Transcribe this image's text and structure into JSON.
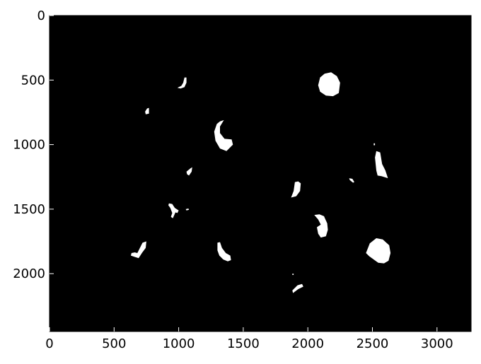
{
  "chart_data": {
    "type": "image",
    "title": "",
    "xlabel": "",
    "ylabel": "",
    "xlim": [
      0,
      3264
    ],
    "ylim": [
      2448,
      0
    ],
    "xticks": [
      0,
      500,
      1000,
      1500,
      2000,
      2500,
      3000
    ],
    "yticks": [
      0,
      500,
      1000,
      1500,
      2000
    ],
    "xtick_labels": [
      "0",
      "500",
      "1000",
      "1500",
      "2000",
      "2500",
      "3000"
    ],
    "ytick_labels": [
      "0",
      "500",
      "1000",
      "1500",
      "2000"
    ],
    "background_color": "#000000",
    "foreground_color": "#ffffff",
    "grid": false,
    "blobs": [
      {
        "name": "blob-1",
        "points": [
          [
            1000,
            555
          ],
          [
            1020,
            545
          ],
          [
            1035,
            520
          ],
          [
            1045,
            480
          ],
          [
            1060,
            480
          ],
          [
            1060,
            520
          ],
          [
            1045,
            555
          ],
          [
            1015,
            565
          ],
          [
            990,
            560
          ]
        ]
      },
      {
        "name": "blob-2",
        "points": [
          [
            740,
            745
          ],
          [
            755,
            720
          ],
          [
            770,
            715
          ],
          [
            770,
            760
          ],
          [
            745,
            765
          ]
        ]
      },
      {
        "name": "blob-3",
        "points": [
          [
            2080,
            540
          ],
          [
            2095,
            480
          ],
          [
            2130,
            450
          ],
          [
            2180,
            440
          ],
          [
            2225,
            470
          ],
          [
            2250,
            520
          ],
          [
            2240,
            600
          ],
          [
            2195,
            625
          ],
          [
            2140,
            620
          ],
          [
            2095,
            590
          ]
        ]
      },
      {
        "name": "blob-4",
        "points": [
          [
            1320,
            820
          ],
          [
            1350,
            810
          ],
          [
            1320,
            860
          ],
          [
            1320,
            910
          ],
          [
            1355,
            955
          ],
          [
            1410,
            960
          ],
          [
            1420,
            1000
          ],
          [
            1370,
            1050
          ],
          [
            1320,
            1030
          ],
          [
            1285,
            970
          ],
          [
            1275,
            900
          ],
          [
            1295,
            840
          ]
        ]
      },
      {
        "name": "blob-5",
        "points": [
          [
            2530,
            1050
          ],
          [
            2560,
            1060
          ],
          [
            2575,
            1150
          ],
          [
            2600,
            1200
          ],
          [
            2620,
            1260
          ],
          [
            2570,
            1245
          ],
          [
            2540,
            1240
          ],
          [
            2530,
            1200
          ],
          [
            2520,
            1100
          ]
        ]
      },
      {
        "name": "blob-6",
        "points": [
          [
            2510,
            990
          ],
          [
            2520,
            990
          ],
          [
            2520,
            1005
          ],
          [
            2510,
            1005
          ]
        ]
      },
      {
        "name": "blob-7",
        "points": [
          [
            1060,
            1210
          ],
          [
            1090,
            1185
          ],
          [
            1105,
            1175
          ],
          [
            1100,
            1210
          ],
          [
            1080,
            1240
          ],
          [
            1065,
            1230
          ]
        ]
      },
      {
        "name": "blob-8",
        "points": [
          [
            2320,
            1260
          ],
          [
            2345,
            1265
          ],
          [
            2360,
            1290
          ],
          [
            2350,
            1295
          ],
          [
            2325,
            1275
          ]
        ]
      },
      {
        "name": "blob-9",
        "points": [
          [
            1900,
            1290
          ],
          [
            1925,
            1285
          ],
          [
            1945,
            1300
          ],
          [
            1940,
            1360
          ],
          [
            1910,
            1400
          ],
          [
            1870,
            1410
          ],
          [
            1890,
            1360
          ]
        ]
      },
      {
        "name": "blob-10",
        "points": [
          [
            925,
            1455
          ],
          [
            950,
            1460
          ],
          [
            970,
            1490
          ],
          [
            1000,
            1510
          ],
          [
            990,
            1530
          ],
          [
            975,
            1525
          ],
          [
            955,
            1570
          ],
          [
            940,
            1560
          ],
          [
            950,
            1530
          ],
          [
            935,
            1490
          ],
          [
            920,
            1470
          ]
        ]
      },
      {
        "name": "blob-11",
        "points": [
          [
            1055,
            1500
          ],
          [
            1075,
            1495
          ],
          [
            1080,
            1505
          ],
          [
            1060,
            1510
          ]
        ]
      },
      {
        "name": "blob-12",
        "points": [
          [
            2050,
            1545
          ],
          [
            2090,
            1540
          ],
          [
            2125,
            1555
          ],
          [
            2150,
            1610
          ],
          [
            2155,
            1660
          ],
          [
            2140,
            1710
          ],
          [
            2100,
            1720
          ],
          [
            2080,
            1690
          ],
          [
            2070,
            1640
          ],
          [
            2100,
            1620
          ],
          [
            2080,
            1580
          ]
        ]
      },
      {
        "name": "blob-13",
        "points": [
          [
            2450,
            1840
          ],
          [
            2480,
            1765
          ],
          [
            2530,
            1725
          ],
          [
            2580,
            1735
          ],
          [
            2630,
            1780
          ],
          [
            2640,
            1840
          ],
          [
            2625,
            1900
          ],
          [
            2590,
            1920
          ],
          [
            2545,
            1915
          ],
          [
            2510,
            1890
          ],
          [
            2475,
            1865
          ]
        ]
      },
      {
        "name": "blob-14",
        "points": [
          [
            635,
            1840
          ],
          [
            660,
            1835
          ],
          [
            680,
            1840
          ],
          [
            700,
            1800
          ],
          [
            720,
            1760
          ],
          [
            750,
            1750
          ],
          [
            745,
            1800
          ],
          [
            715,
            1840
          ],
          [
            690,
            1880
          ],
          [
            660,
            1870
          ],
          [
            630,
            1860
          ]
        ]
      },
      {
        "name": "blob-15",
        "points": [
          [
            1300,
            1760
          ],
          [
            1320,
            1755
          ],
          [
            1335,
            1800
          ],
          [
            1365,
            1840
          ],
          [
            1400,
            1860
          ],
          [
            1405,
            1895
          ],
          [
            1380,
            1905
          ],
          [
            1345,
            1890
          ],
          [
            1315,
            1860
          ],
          [
            1300,
            1820
          ]
        ]
      },
      {
        "name": "blob-16",
        "points": [
          [
            1920,
            2090
          ],
          [
            1955,
            2080
          ],
          [
            1965,
            2100
          ],
          [
            1925,
            2120
          ],
          [
            1885,
            2150
          ],
          [
            1880,
            2130
          ]
        ]
      },
      {
        "name": "blob-17",
        "points": [
          [
            1880,
            2000
          ],
          [
            1890,
            2000
          ],
          [
            1890,
            2010
          ],
          [
            1880,
            2010
          ]
        ]
      }
    ]
  }
}
